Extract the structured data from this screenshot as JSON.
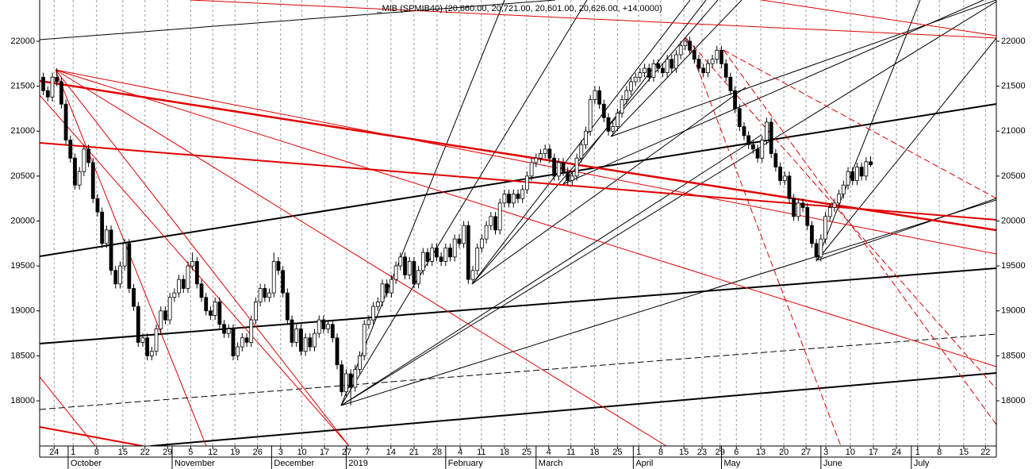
{
  "chart_data": {
    "type": "candlestick",
    "title": "_MIB (SPMIB40) (20,660.00, 20,721.00, 20,601.00, 20,626.00, +14.0000)",
    "x": [
      0,
      1,
      2,
      3,
      4,
      5,
      6,
      7,
      8,
      9,
      10,
      11,
      12,
      13,
      14,
      15,
      16,
      17,
      18,
      19,
      20,
      21,
      22,
      23,
      24,
      25,
      26,
      27,
      28,
      29,
      30,
      31,
      32,
      33,
      34,
      35,
      36,
      37,
      38,
      39,
      40,
      41,
      42,
      43,
      44,
      45,
      46,
      47,
      48,
      49,
      50,
      51,
      52,
      53,
      54,
      55,
      56,
      57,
      58,
      59,
      60,
      61,
      62,
      63,
      64,
      65,
      66,
      67,
      68,
      69,
      70,
      71,
      72,
      73,
      74,
      75,
      76,
      77,
      78,
      79,
      80,
      81,
      82,
      83,
      84,
      85,
      86,
      87,
      88,
      89,
      90,
      91,
      92,
      93,
      94,
      95,
      96,
      97,
      98,
      99,
      100,
      101,
      102,
      103,
      104,
      105,
      106,
      107,
      108,
      109,
      110,
      111,
      112,
      113,
      114,
      115,
      116,
      117,
      118,
      119,
      120,
      121,
      122,
      123,
      124,
      125,
      126,
      127,
      128,
      129,
      130,
      131,
      132,
      133,
      134,
      135,
      136,
      137,
      138,
      139,
      140,
      141,
      142,
      143,
      144,
      145,
      146,
      147,
      148,
      149,
      150,
      151,
      152,
      153,
      154,
      155,
      156,
      157,
      158,
      159,
      160,
      161,
      162,
      163,
      164,
      165,
      166,
      167,
      168,
      169,
      170,
      171,
      172,
      173,
      174,
      175,
      176,
      177,
      178,
      179,
      180,
      181,
      182,
      183
    ],
    "open": [
      21600,
      21450,
      21380,
      21600,
      21550,
      21300,
      20900,
      20700,
      20400,
      20550,
      20800,
      20650,
      20250,
      20100,
      19750,
      19900,
      19450,
      19300,
      19500,
      19750,
      19250,
      19050,
      18650,
      18700,
      18500,
      18550,
      18800,
      19000,
      18900,
      19150,
      19200,
      19350,
      19250,
      19500,
      19550,
      19300,
      19150,
      19000,
      18950,
      19100,
      18850,
      18750,
      18800,
      18500,
      18600,
      18700,
      18650,
      18900,
      19100,
      19250,
      19150,
      19200,
      19550,
      19450,
      19200,
      18900,
      18650,
      18800,
      18550,
      18700,
      18600,
      18750,
      18900,
      18800,
      18850,
      18700,
      18400,
      18100,
      18300,
      18150,
      18350,
      18500,
      18850,
      18900,
      19050,
      19100,
      19300,
      19200,
      19350,
      19500,
      19600,
      19400,
      19550,
      19300,
      19450,
      19650,
      19550,
      19700,
      19600,
      19550,
      19700,
      19600,
      19800,
      19750,
      19950,
      19350,
      19450,
      19700,
      19800,
      19950,
      20050,
      19900,
      20200,
      20300,
      20200,
      20300,
      20250,
      20350,
      20500,
      20650,
      20700,
      20750,
      20800,
      20700,
      20500,
      20650,
      20550,
      20450,
      20500,
      20700,
      20850,
      21000,
      21350,
      21450,
      21300,
      21150,
      21000,
      21050,
      21200,
      21350,
      21450,
      21550,
      21600,
      21650,
      21700,
      21600,
      21750,
      21700,
      21650,
      21800,
      21700,
      21850,
      21950,
      22000,
      21900,
      21800,
      21700,
      21650,
      21750,
      21800,
      21900,
      21750,
      21600,
      21450,
      21250,
      21050,
      20950,
      20850,
      20800,
      20700,
      20900,
      21100,
      20750,
      20600,
      20450,
      20500,
      20250,
      20050,
      20200,
      20150,
      19950,
      19750,
      19600,
      19800,
      20050,
      20150,
      20200,
      20300,
      20400,
      20550,
      20450,
      20600,
      20500,
      20660
    ],
    "high": [
      21650,
      21500,
      21650,
      21700,
      21600,
      21350,
      20950,
      20750,
      20600,
      20850,
      20850,
      20700,
      20300,
      20150,
      19950,
      19950,
      19500,
      19550,
      19800,
      19800,
      19300,
      19100,
      18750,
      18750,
      18600,
      18850,
      19050,
      19050,
      19200,
      19250,
      19400,
      19400,
      19550,
      19650,
      19600,
      19350,
      19200,
      19050,
      19150,
      19150,
      18900,
      18850,
      18850,
      18650,
      18750,
      18750,
      18950,
      19150,
      19300,
      19300,
      19250,
      19650,
      19600,
      19500,
      19250,
      18950,
      18850,
      18850,
      18750,
      18750,
      18800,
      18950,
      18950,
      18900,
      18900,
      18750,
      18450,
      18350,
      18350,
      18400,
      18550,
      18900,
      18950,
      19100,
      19150,
      19350,
      19350,
      19400,
      19550,
      19650,
      19650,
      19600,
      19600,
      19500,
      19700,
      19700,
      19750,
      19750,
      19650,
      19750,
      19750,
      19850,
      19850,
      20000,
      20000,
      19500,
      19750,
      19850,
      20000,
      20100,
      20100,
      20250,
      20350,
      20350,
      20350,
      20350,
      20400,
      20550,
      20700,
      20750,
      20800,
      20850,
      20850,
      20750,
      20700,
      20700,
      20600,
      20550,
      20750,
      20900,
      21050,
      21400,
      21500,
      21500,
      21350,
      21200,
      21100,
      21250,
      21400,
      21500,
      21600,
      21650,
      21700,
      21750,
      21750,
      21800,
      21800,
      21750,
      21850,
      21850,
      21900,
      22000,
      22050,
      22050,
      21950,
      21850,
      21750,
      21800,
      21850,
      21950,
      21950,
      21800,
      21650,
      21500,
      21300,
      21100,
      21000,
      20900,
      20850,
      20950,
      21150,
      21150,
      20800,
      20650,
      20550,
      20550,
      20300,
      20250,
      20250,
      20200,
      20000,
      19800,
      19850,
      20100,
      20200,
      20250,
      20350,
      20450,
      20600,
      20600,
      20650,
      20650,
      20710,
      20721
    ],
    "low": [
      21400,
      21330,
      21330,
      21500,
      21250,
      20850,
      20650,
      20350,
      20350,
      20500,
      20600,
      20200,
      20050,
      19700,
      19700,
      19400,
      19250,
      19250,
      19450,
      19200,
      19000,
      18600,
      18600,
      18450,
      18450,
      18500,
      18750,
      18850,
      18850,
      19100,
      19150,
      19200,
      19200,
      19450,
      19250,
      19100,
      18950,
      18900,
      18900,
      18800,
      18700,
      18700,
      18450,
      18450,
      18550,
      18600,
      18600,
      18850,
      19050,
      19100,
      19100,
      19150,
      19400,
      19150,
      18850,
      18600,
      18600,
      18500,
      18500,
      18550,
      18550,
      18700,
      18750,
      18750,
      18650,
      18350,
      18050,
      18050,
      17950,
      18100,
      18300,
      18450,
      18800,
      18850,
      19000,
      19050,
      19150,
      19150,
      19300,
      19450,
      19350,
      19350,
      19250,
      19250,
      19400,
      19500,
      19500,
      19550,
      19500,
      19500,
      19550,
      19550,
      19700,
      19700,
      19300,
      19300,
      19400,
      19650,
      19750,
      19900,
      19850,
      19850,
      20150,
      20150,
      20150,
      20200,
      20200,
      20300,
      20450,
      20600,
      20650,
      20700,
      20650,
      20450,
      20450,
      20500,
      20400,
      20400,
      20450,
      20650,
      20800,
      20950,
      21300,
      21250,
      21100,
      20950,
      20950,
      21000,
      21150,
      21300,
      21400,
      21500,
      21550,
      21600,
      21550,
      21550,
      21650,
      21600,
      21600,
      21650,
      21650,
      21800,
      21900,
      21850,
      21750,
      21650,
      21600,
      21600,
      21700,
      21750,
      21700,
      21550,
      21400,
      21200,
      21000,
      20900,
      20800,
      20750,
      20650,
      20650,
      20850,
      20700,
      20550,
      20400,
      20400,
      20200,
      20000,
      20000,
      20100,
      19900,
      19700,
      19550,
      19550,
      19750,
      20000,
      20100,
      20150,
      20250,
      20350,
      20400,
      20400,
      20450,
      20450,
      20601
    ],
    "close": [
      21450,
      21380,
      21600,
      21550,
      21300,
      20900,
      20700,
      20400,
      20550,
      20800,
      20650,
      20250,
      20100,
      19750,
      19900,
      19450,
      19300,
      19500,
      19750,
      19250,
      19050,
      18650,
      18700,
      18500,
      18550,
      18800,
      19000,
      18900,
      19150,
      19200,
      19350,
      19250,
      19500,
      19550,
      19300,
      19150,
      19000,
      18950,
      19100,
      18850,
      18750,
      18800,
      18500,
      18600,
      18700,
      18650,
      18900,
      19100,
      19250,
      19150,
      19200,
      19550,
      19450,
      19200,
      18900,
      18650,
      18800,
      18550,
      18700,
      18600,
      18750,
      18900,
      18800,
      18850,
      18700,
      18400,
      18100,
      18300,
      18150,
      18350,
      18500,
      18850,
      18900,
      19050,
      19100,
      19300,
      19200,
      19350,
      19500,
      19600,
      19400,
      19550,
      19300,
      19450,
      19650,
      19550,
      19700,
      19600,
      19550,
      19700,
      19600,
      19800,
      19750,
      19950,
      19350,
      19450,
      19700,
      19800,
      19950,
      20050,
      19900,
      20200,
      20300,
      20200,
      20300,
      20250,
      20350,
      20500,
      20650,
      20700,
      20750,
      20800,
      20700,
      20500,
      20650,
      20550,
      20450,
      20500,
      20700,
      20850,
      21000,
      21350,
      21450,
      21300,
      21150,
      21000,
      21050,
      21200,
      21350,
      21450,
      21550,
      21600,
      21650,
      21700,
      21600,
      21750,
      21700,
      21650,
      21800,
      21700,
      21850,
      21950,
      22000,
      21900,
      21800,
      21700,
      21650,
      21750,
      21800,
      21900,
      21750,
      21600,
      21450,
      21250,
      21050,
      20950,
      20850,
      20800,
      20700,
      20900,
      21100,
      20750,
      20600,
      20450,
      20500,
      20250,
      20050,
      20200,
      20150,
      19950,
      19750,
      19600,
      19800,
      20050,
      20150,
      20200,
      20300,
      20400,
      20550,
      20450,
      20600,
      20500,
      20660,
      20626
    ],
    "up_color": "#ffffff",
    "down_color": "#000000",
    "xlim": [
      -0.8,
      210.8
    ],
    "xticks": [
      {
        "value": 2.4,
        "label": "24"
      },
      {
        "value": 6.6,
        "label": "1"
      },
      {
        "value": 11.8,
        "label": "8"
      },
      {
        "value": 17.6,
        "label": "15"
      },
      {
        "value": 22.5,
        "label": "22"
      },
      {
        "value": 27.5,
        "label": "29"
      },
      {
        "value": 32.6,
        "label": "5"
      },
      {
        "value": 37.5,
        "label": "12"
      },
      {
        "value": 42.4,
        "label": "19"
      },
      {
        "value": 47.4,
        "label": "26"
      },
      {
        "value": 52.5,
        "label": "3"
      },
      {
        "value": 57.2,
        "label": "10"
      },
      {
        "value": 62.2,
        "label": "17"
      },
      {
        "value": 67.1,
        "label": "27"
      },
      {
        "value": 71.7,
        "label": "7"
      },
      {
        "value": 76.9,
        "label": "14"
      },
      {
        "value": 82,
        "label": "21"
      },
      {
        "value": 87.1,
        "label": "28"
      },
      {
        "value": 92.2,
        "label": "4"
      },
      {
        "value": 96.9,
        "label": "11"
      },
      {
        "value": 102,
        "label": "18"
      },
      {
        "value": 106.9,
        "label": "25"
      },
      {
        "value": 111.8,
        "label": "4"
      },
      {
        "value": 116.7,
        "label": "11"
      },
      {
        "value": 121.9,
        "label": "18"
      },
      {
        "value": 127,
        "label": "25"
      },
      {
        "value": 131.7,
        "label": "1"
      },
      {
        "value": 136.6,
        "label": "8"
      },
      {
        "value": 141.7,
        "label": "15"
      },
      {
        "value": 145.7,
        "label": "23"
      },
      {
        "value": 149.7,
        "label": "29"
      },
      {
        "value": 153.3,
        "label": "6"
      },
      {
        "value": 158.7,
        "label": "13"
      },
      {
        "value": 163.8,
        "label": "20"
      },
      {
        "value": 168.7,
        "label": "27"
      },
      {
        "value": 173.1,
        "label": "3"
      },
      {
        "value": 178.5,
        "label": "10"
      },
      {
        "value": 183.6,
        "label": "17"
      },
      {
        "value": 188.7,
        "label": "24"
      },
      {
        "value": 193.4,
        "label": "1"
      },
      {
        "value": 198.2,
        "label": "8"
      },
      {
        "value": 203.6,
        "label": "15"
      },
      {
        "value": 208.4,
        "label": "22"
      }
    ],
    "month_labels": [
      {
        "value": 5.5,
        "label": "October"
      },
      {
        "value": 28.5,
        "label": "November"
      },
      {
        "value": 50.5,
        "label": "December"
      },
      {
        "value": 67,
        "label": "2019"
      },
      {
        "value": 89,
        "label": "February"
      },
      {
        "value": 109,
        "label": "March"
      },
      {
        "value": 130.5,
        "label": "April"
      },
      {
        "value": 150,
        "label": "May"
      },
      {
        "value": 172,
        "label": "June"
      },
      {
        "value": 192,
        "label": "July"
      }
    ],
    "ylim": [
      17497,
      22459
    ],
    "yticks": [
      18000,
      18500,
      19000,
      19500,
      20000,
      20500,
      21000,
      21500,
      22000
    ],
    "grid": true
  }
}
